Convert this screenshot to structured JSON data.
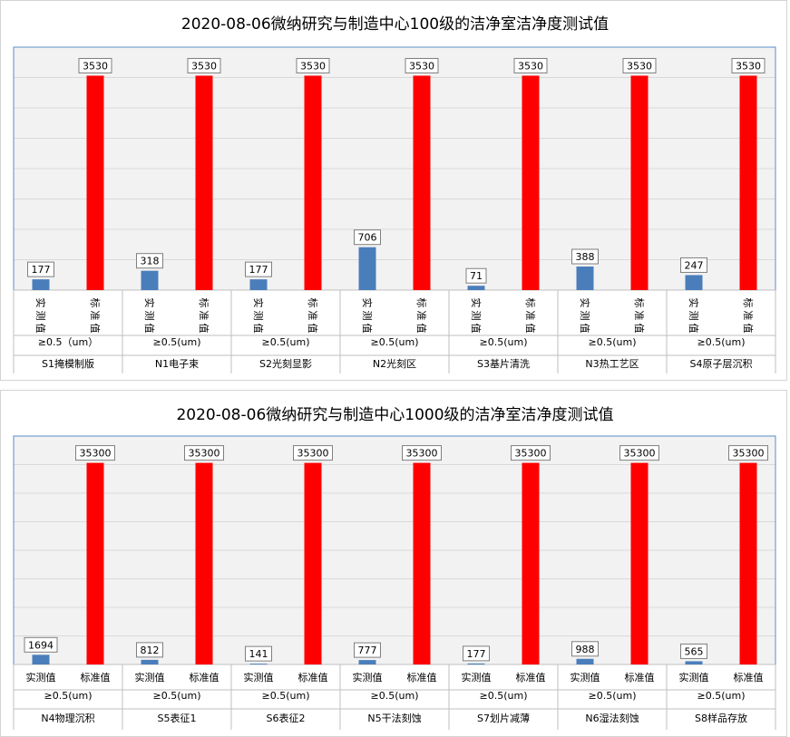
{
  "chart_data": [
    {
      "type": "bar",
      "title": "2020-08-06微纳研究与制造中心100级的洁净室洁净度测试值",
      "bar_labels": [
        "实测值",
        "标准值"
      ],
      "particle_size": [
        "≥0.5（um）",
        "≥0.5(um)",
        "≥0.5(um)",
        "≥0.5(um)",
        "≥0.5(um)",
        "≥0.5(um)",
        "≥0.5(um)"
      ],
      "categories": [
        "S1掩模制版",
        "N1电子束",
        "S2光刻显影",
        "N2光刻区",
        "S3基片清洗",
        "N3热工艺区",
        "S4原子层沉积"
      ],
      "series": [
        {
          "name": "实测值",
          "color": "#4a7ebb",
          "values": [
            177,
            318,
            177,
            706,
            71,
            388,
            247
          ]
        },
        {
          "name": "标准值",
          "color": "#ff0000",
          "values": [
            3530,
            3530,
            3530,
            3530,
            3530,
            3530,
            3530
          ]
        }
      ],
      "ylim": [
        0,
        4000
      ],
      "grid": true,
      "legend": "none",
      "xlabel": "",
      "ylabel": ""
    },
    {
      "type": "bar",
      "title": "2020-08-06微纳研究与制造中心1000级的洁净室洁净度测试值",
      "bar_labels": [
        "实测值",
        "标准值"
      ],
      "particle_size": [
        "≥0.5(um)",
        "≥0.5(um)",
        "≥0.5(um)",
        "≥0.5(um)",
        "≥0.5(um)",
        "≥0.5(um)",
        "≥0.5(um)"
      ],
      "categories": [
        "N4物理沉积",
        "S5表征1",
        "S6表征2",
        "N5干法刻蚀",
        "S7划片减薄",
        "N6湿法刻蚀",
        "S8样品存放"
      ],
      "series": [
        {
          "name": "实测值",
          "color": "#4a7ebb",
          "values": [
            1694,
            812,
            141,
            777,
            177,
            988,
            565
          ]
        },
        {
          "name": "标准值",
          "color": "#ff0000",
          "values": [
            35300,
            35300,
            35300,
            35300,
            35300,
            35300,
            35300
          ]
        }
      ],
      "ylim": [
        0,
        40000
      ],
      "grid": true,
      "legend": "none",
      "xlabel": "",
      "ylabel": ""
    }
  ]
}
